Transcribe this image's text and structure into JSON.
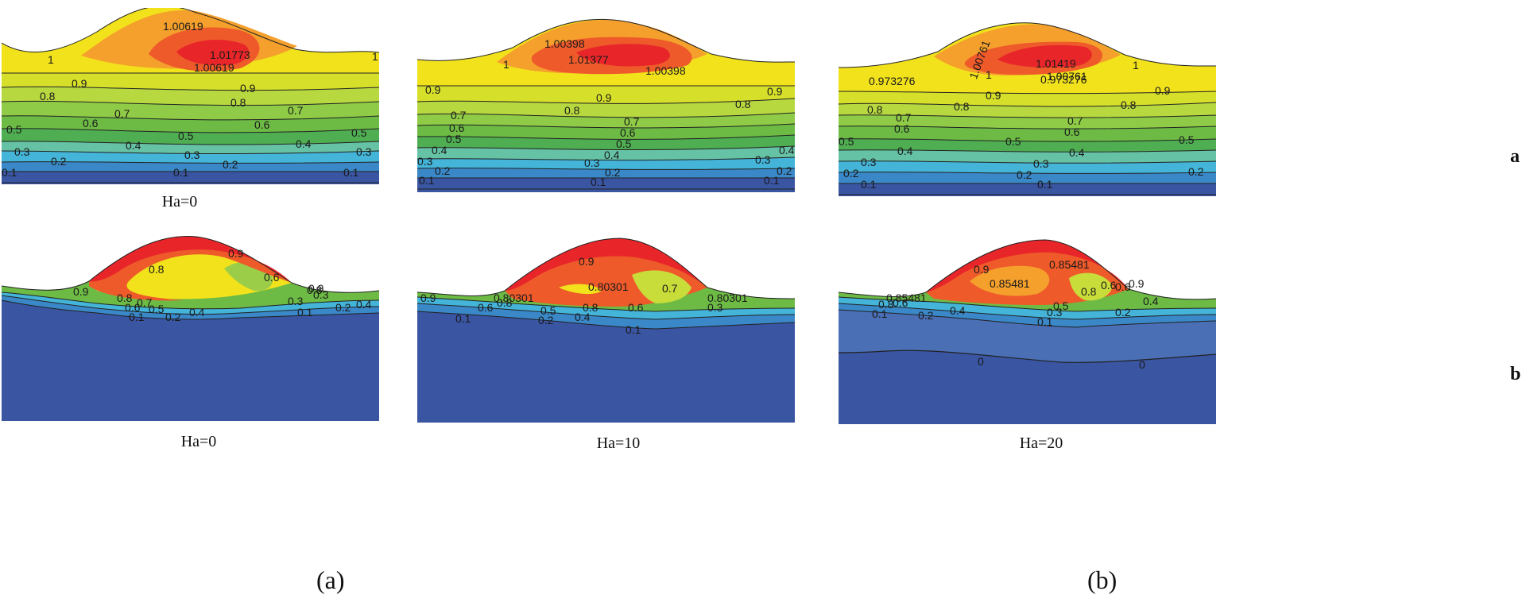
{
  "row_tags": [
    "a",
    "b"
  ],
  "figure_labels": [
    "(a)",
    "(b)"
  ],
  "panels": [
    {
      "id": "a0",
      "caption": "Ha=0",
      "contour_labels": [
        "1.00619",
        "1.01773",
        "1.00619",
        "1",
        "1",
        "0.9",
        "0.9",
        "0.8",
        "0.8",
        "0.7",
        "0.7",
        "0.6",
        "0.6",
        "0.5",
        "0.5",
        "0.5",
        "0.4",
        "0.4",
        "0.3",
        "0.3",
        "0.3",
        "0.2",
        "0.2",
        "0.1",
        "0.1",
        "0.1"
      ]
    },
    {
      "id": "a10",
      "caption": "",
      "contour_labels": [
        "1.00398",
        "1.01377",
        "1.00398",
        "1",
        "0.9",
        "0.9",
        "0.9",
        "0.8",
        "0.8",
        "0.7",
        "0.7",
        "0.6",
        "0.6",
        "0.5",
        "0.5",
        "0.4",
        "0.4",
        "0.4",
        "0.3",
        "0.3",
        "0.3",
        "0.2",
        "0.2",
        "0.2",
        "0.1",
        "0.1",
        "0.1"
      ]
    },
    {
      "id": "a20",
      "caption": "",
      "contour_labels": [
        "1.00761",
        "1.01419",
        "1.00761",
        "1",
        "1",
        "0.973276",
        "0.973276",
        "0.9",
        "0.9",
        "0.8",
        "0.8",
        "0.8",
        "0.7",
        "0.7",
        "0.6",
        "0.6",
        "0.5",
        "0.5",
        "0.5",
        "0.4",
        "0.4",
        "0.3",
        "0.3",
        "0.2",
        "0.2",
        "0.2",
        "0.1",
        "0.1"
      ]
    },
    {
      "id": "b0",
      "caption": "Ha=0",
      "contour_labels": [
        "0.9",
        "0.8",
        "0.9",
        "0.8",
        "0.7",
        "0.6",
        "0.5",
        "0.4",
        "0.3",
        "0.2",
        "0.1",
        "0.4",
        "0.3",
        "0.2",
        "0.1",
        "0.6",
        "0.8",
        "0.9"
      ]
    },
    {
      "id": "b10",
      "caption": "Ha=10",
      "contour_labels": [
        "0.9",
        "0.80301",
        "0.80301",
        "0.8",
        "0.8",
        "0.7",
        "0.6",
        "0.5",
        "0.4",
        "0.3",
        "0.2",
        "0.1",
        "0.1",
        "0.9",
        "0.6",
        "0.80301"
      ]
    },
    {
      "id": "b20",
      "caption": "Ha=20",
      "contour_labels": [
        "0.9",
        "0.85481",
        "0.85481",
        "0.85481",
        "0.8",
        "0.8",
        "0.6",
        "0.6",
        "0.5",
        "0.4",
        "0.4",
        "0.3",
        "0.2",
        "0.2",
        "0.1",
        "0.1",
        "0",
        "0",
        "0.9",
        "0.6"
      ]
    }
  ],
  "colors": {
    "red": "#e8262a",
    "orange_red": "#ee5a2a",
    "orange": "#f5a02c",
    "yellow": "#f2e21c",
    "yellow_green": "#c8dc3a",
    "green_light": "#9ccd48",
    "green": "#6dbb45",
    "green_dark": "#4fae52",
    "cyan": "#44b4d8",
    "blue_light": "#3aa2d8",
    "blue": "#3a7cc4",
    "navy": "#3a55a2"
  }
}
